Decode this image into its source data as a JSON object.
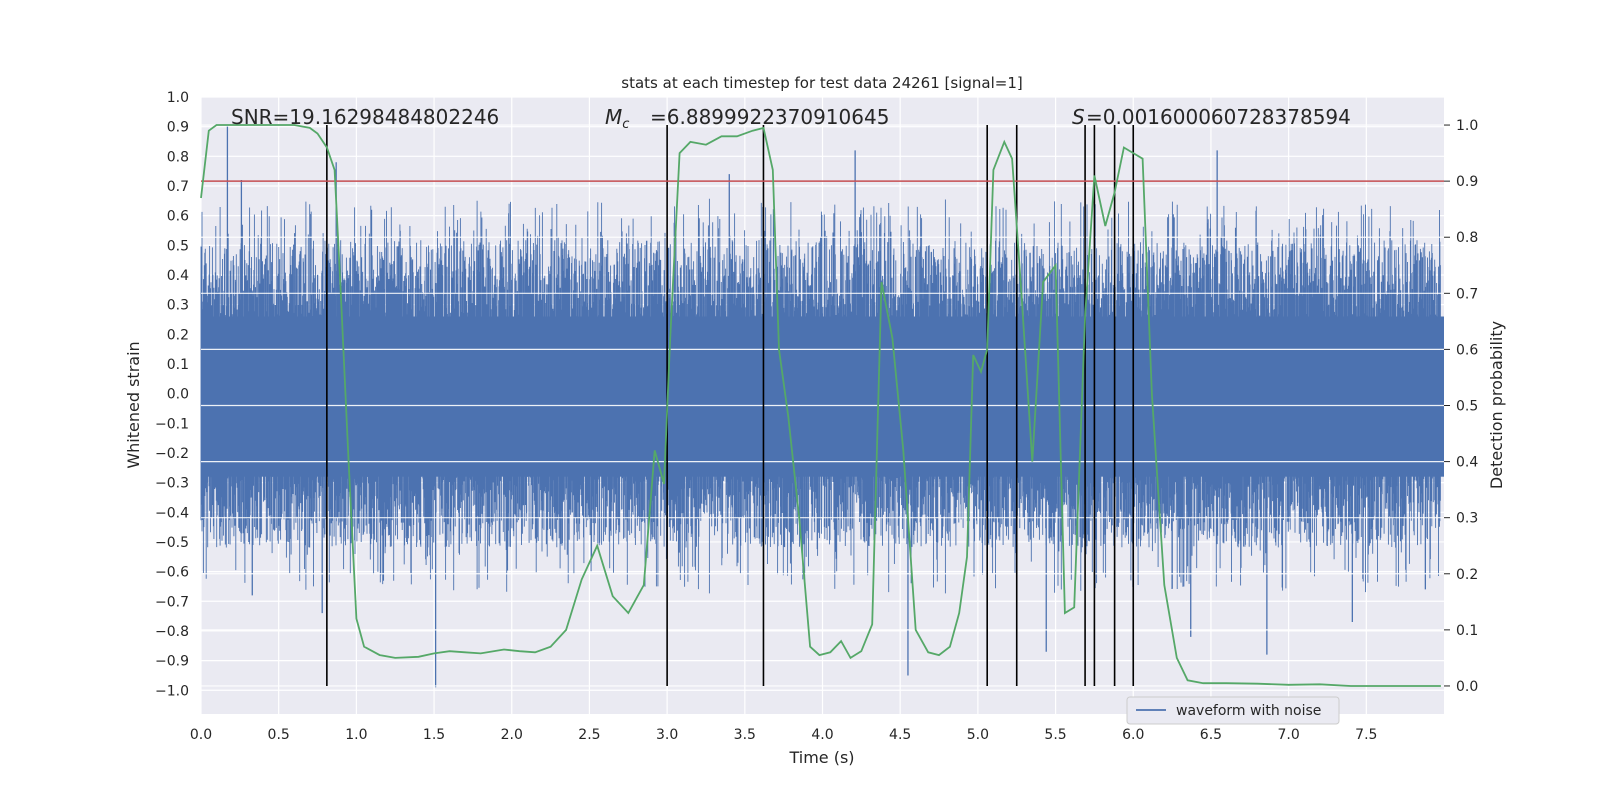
{
  "chart_data": {
    "type": "line",
    "title": "stats at each timestep for test data 24261 [signal=1]",
    "xlabel": "Time (s)",
    "ylabel_left": "Whitened strain",
    "ylabel_right": "Detection probability",
    "xlim": [
      0.0,
      8.0
    ],
    "ylim_left": [
      -1.08,
      1.0
    ],
    "ylim_right": [
      -0.05,
      1.05
    ],
    "x_ticks": [
      "0.0",
      "0.5",
      "1.0",
      "1.5",
      "2.0",
      "2.5",
      "3.0",
      "3.5",
      "4.0",
      "4.5",
      "5.0",
      "5.5",
      "6.0",
      "6.5",
      "7.0",
      "7.5"
    ],
    "y_ticks_left": [
      "1.0",
      "0.9",
      "0.8",
      "0.7",
      "0.6",
      "0.5",
      "0.4",
      "0.3",
      "0.2",
      "0.1",
      "0.0",
      "−0.1",
      "−0.2",
      "−0.3",
      "−0.4",
      "−0.5",
      "−0.6",
      "−0.7",
      "−0.8",
      "−0.9",
      "−1.0"
    ],
    "y_ticks_right": [
      "1.0",
      "0.9",
      "0.8",
      "0.7",
      "0.6",
      "0.5",
      "0.4",
      "0.3",
      "0.2",
      "0.1",
      "0.0"
    ],
    "grid": true,
    "legend": {
      "position": "lower-right",
      "entries": [
        "waveform with noise"
      ]
    },
    "annotations": {
      "snr": "SNR=19.16298484802246",
      "mc": "=6.8899922370910645",
      "s": "=0.001600060728378594"
    },
    "threshold_right": 0.9,
    "event_lines_x": [
      0.81,
      3.0,
      3.62,
      5.06,
      5.25,
      5.69,
      5.75,
      5.88,
      6.0
    ],
    "waveform": {
      "name": "waveform with noise",
      "color": "#4c72b0",
      "spike_points": [
        [
          0.17,
          0.9
        ],
        [
          0.26,
          0.72
        ],
        [
          0.87,
          0.78
        ],
        [
          1.51,
          -0.99
        ],
        [
          3.4,
          0.74
        ],
        [
          4.21,
          0.82
        ],
        [
          4.55,
          -0.95
        ],
        [
          5.44,
          -0.87
        ],
        [
          6.54,
          0.82
        ],
        [
          6.37,
          -0.82
        ],
        [
          6.86,
          -0.88
        ],
        [
          7.41,
          -0.77
        ],
        [
          7.88,
          -0.66
        ],
        [
          0.78,
          -0.74
        ],
        [
          0.33,
          -0.68
        ]
      ]
    },
    "probability": {
      "color": "#55a868",
      "points": [
        [
          0.0,
          0.87
        ],
        [
          0.05,
          0.99
        ],
        [
          0.1,
          1.0
        ],
        [
          0.2,
          1.0
        ],
        [
          0.4,
          1.0
        ],
        [
          0.6,
          1.0
        ],
        [
          0.7,
          0.995
        ],
        [
          0.75,
          0.985
        ],
        [
          0.81,
          0.96
        ],
        [
          0.86,
          0.92
        ],
        [
          0.9,
          0.7
        ],
        [
          0.95,
          0.4
        ],
        [
          1.0,
          0.12
        ],
        [
          1.05,
          0.07
        ],
        [
          1.15,
          0.055
        ],
        [
          1.25,
          0.05
        ],
        [
          1.4,
          0.052
        ],
        [
          1.5,
          0.058
        ],
        [
          1.6,
          0.062
        ],
        [
          1.7,
          0.06
        ],
        [
          1.8,
          0.058
        ],
        [
          1.95,
          0.065
        ],
        [
          2.05,
          0.062
        ],
        [
          2.15,
          0.06
        ],
        [
          2.25,
          0.07
        ],
        [
          2.35,
          0.1
        ],
        [
          2.45,
          0.19
        ],
        [
          2.55,
          0.25
        ],
        [
          2.65,
          0.16
        ],
        [
          2.75,
          0.13
        ],
        [
          2.85,
          0.18
        ],
        [
          2.92,
          0.42
        ],
        [
          2.98,
          0.36
        ],
        [
          3.02,
          0.62
        ],
        [
          3.08,
          0.95
        ],
        [
          3.15,
          0.97
        ],
        [
          3.25,
          0.965
        ],
        [
          3.35,
          0.98
        ],
        [
          3.45,
          0.98
        ],
        [
          3.55,
          0.99
        ],
        [
          3.62,
          0.995
        ],
        [
          3.68,
          0.92
        ],
        [
          3.72,
          0.6
        ],
        [
          3.78,
          0.48
        ],
        [
          3.85,
          0.3
        ],
        [
          3.92,
          0.07
        ],
        [
          3.98,
          0.055
        ],
        [
          4.05,
          0.06
        ],
        [
          4.12,
          0.08
        ],
        [
          4.18,
          0.05
        ],
        [
          4.25,
          0.062
        ],
        [
          4.32,
          0.11
        ],
        [
          4.38,
          0.72
        ],
        [
          4.45,
          0.62
        ],
        [
          4.52,
          0.42
        ],
        [
          4.6,
          0.1
        ],
        [
          4.68,
          0.06
        ],
        [
          4.75,
          0.055
        ],
        [
          4.82,
          0.07
        ],
        [
          4.88,
          0.13
        ],
        [
          4.93,
          0.23
        ],
        [
          4.97,
          0.59
        ],
        [
          5.02,
          0.56
        ],
        [
          5.06,
          0.6
        ],
        [
          5.1,
          0.92
        ],
        [
          5.17,
          0.97
        ],
        [
          5.22,
          0.94
        ],
        [
          5.28,
          0.7
        ],
        [
          5.35,
          0.4
        ],
        [
          5.42,
          0.72
        ],
        [
          5.5,
          0.75
        ],
        [
          5.56,
          0.13
        ],
        [
          5.62,
          0.14
        ],
        [
          5.69,
          0.66
        ],
        [
          5.75,
          0.91
        ],
        [
          5.82,
          0.82
        ],
        [
          5.88,
          0.88
        ],
        [
          5.94,
          0.96
        ],
        [
          6.0,
          0.95
        ],
        [
          6.06,
          0.94
        ],
        [
          6.12,
          0.52
        ],
        [
          6.2,
          0.18
        ],
        [
          6.28,
          0.05
        ],
        [
          6.35,
          0.01
        ],
        [
          6.45,
          0.005
        ],
        [
          6.6,
          0.005
        ],
        [
          6.8,
          0.004
        ],
        [
          7.0,
          0.002
        ],
        [
          7.2,
          0.003
        ],
        [
          7.4,
          0.0
        ],
        [
          7.6,
          0.0
        ],
        [
          7.8,
          0.0
        ],
        [
          7.98,
          0.0
        ]
      ]
    }
  }
}
